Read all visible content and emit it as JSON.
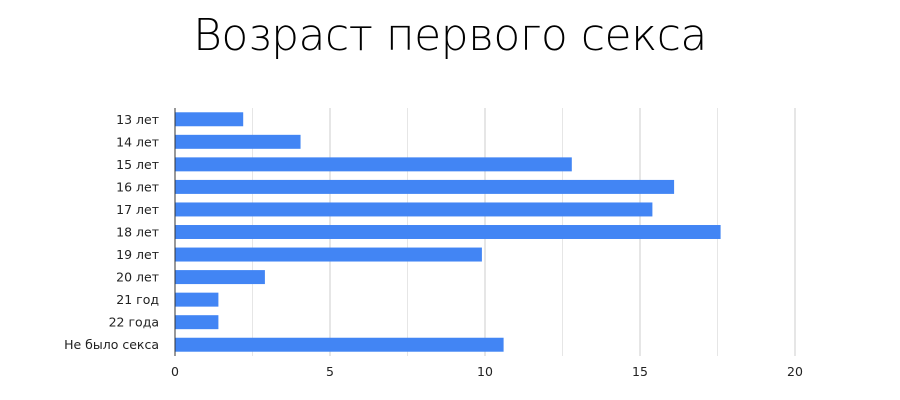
{
  "chart_data": {
    "type": "bar",
    "orientation": "horizontal",
    "title": "Возраст первого секса",
    "xlabel": "",
    "ylabel": "",
    "categories": [
      "13 лет",
      "14 лет",
      "15 лет",
      "16 лет",
      "17 лет",
      "18 лет",
      "19 лет",
      "20 лет",
      "21 год",
      "22 года",
      "Не было секса"
    ],
    "values": [
      2.2,
      4.05,
      12.8,
      16.1,
      15.4,
      17.6,
      9.9,
      2.9,
      1.4,
      1.4,
      10.6
    ],
    "xlim": [
      0,
      22
    ],
    "xticks": [
      0,
      5,
      10,
      15,
      20
    ],
    "grid": true,
    "legend": "none",
    "bar_color": "#4285f4"
  }
}
